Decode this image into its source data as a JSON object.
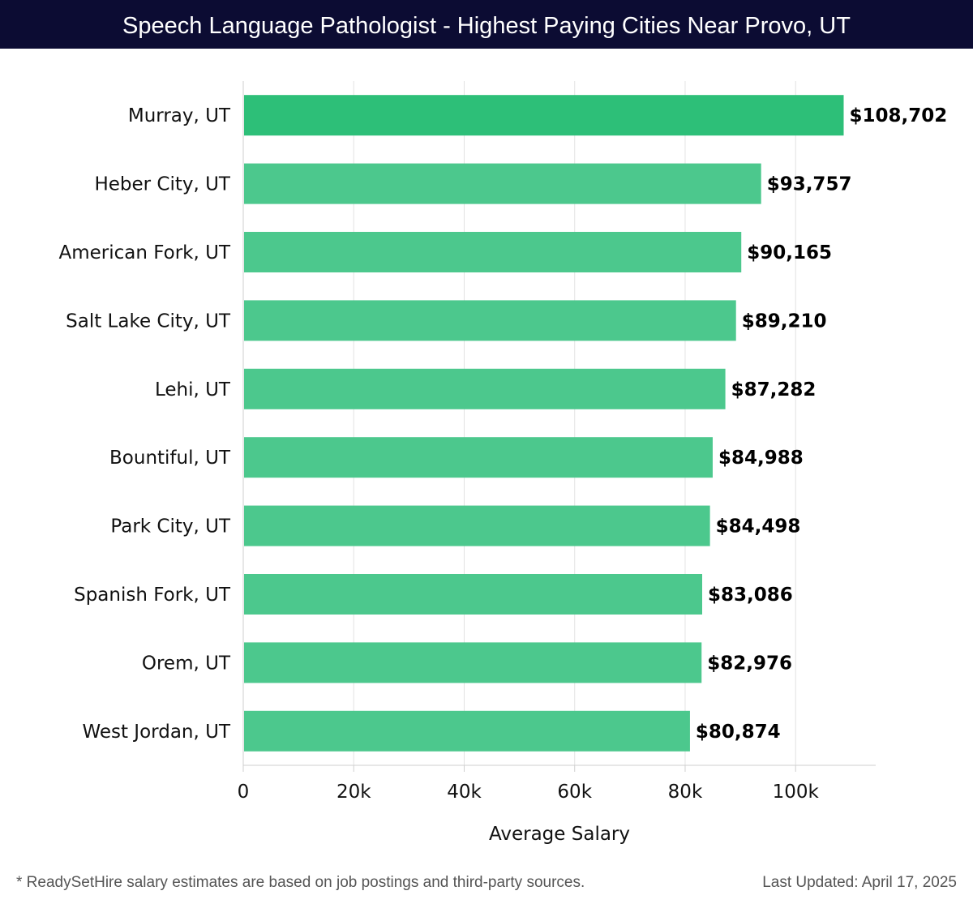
{
  "title": "Speech Language Pathologist - Highest Paying Cities Near Provo, UT",
  "footnote": "* ReadySetHire salary estimates are based on job postings and third-party sources.",
  "updated": "Last Updated: April 17, 2025",
  "chart_data": {
    "type": "bar",
    "orientation": "horizontal",
    "categories": [
      "Murray, UT",
      "Heber City, UT",
      "American Fork, UT",
      "Salt Lake City, UT",
      "Lehi, UT",
      "Bountiful, UT",
      "Park City, UT",
      "Spanish Fork, UT",
      "Orem, UT",
      "West Jordan, UT"
    ],
    "values": [
      108702,
      93757,
      90165,
      89210,
      87282,
      84988,
      84498,
      83086,
      82976,
      80874
    ],
    "value_labels": [
      "$108,702",
      "$93,757",
      "$90,165",
      "$89,210",
      "$87,282",
      "$84,988",
      "$84,498",
      "$83,086",
      "$82,976",
      "$80,874"
    ],
    "xlabel": "Average Salary",
    "ylabel": "",
    "xlim": [
      0,
      114500
    ],
    "xticks": [
      0,
      20000,
      40000,
      60000,
      80000,
      100000
    ],
    "xtick_labels": [
      "0",
      "20k",
      "40k",
      "60k",
      "80k",
      "100k"
    ],
    "grid": true,
    "colors": {
      "top": "#2dbf78",
      "rest": "#4cc88d",
      "grid": "#e3e3e3",
      "axis": "#cfcfcf",
      "text": "#111111"
    }
  }
}
